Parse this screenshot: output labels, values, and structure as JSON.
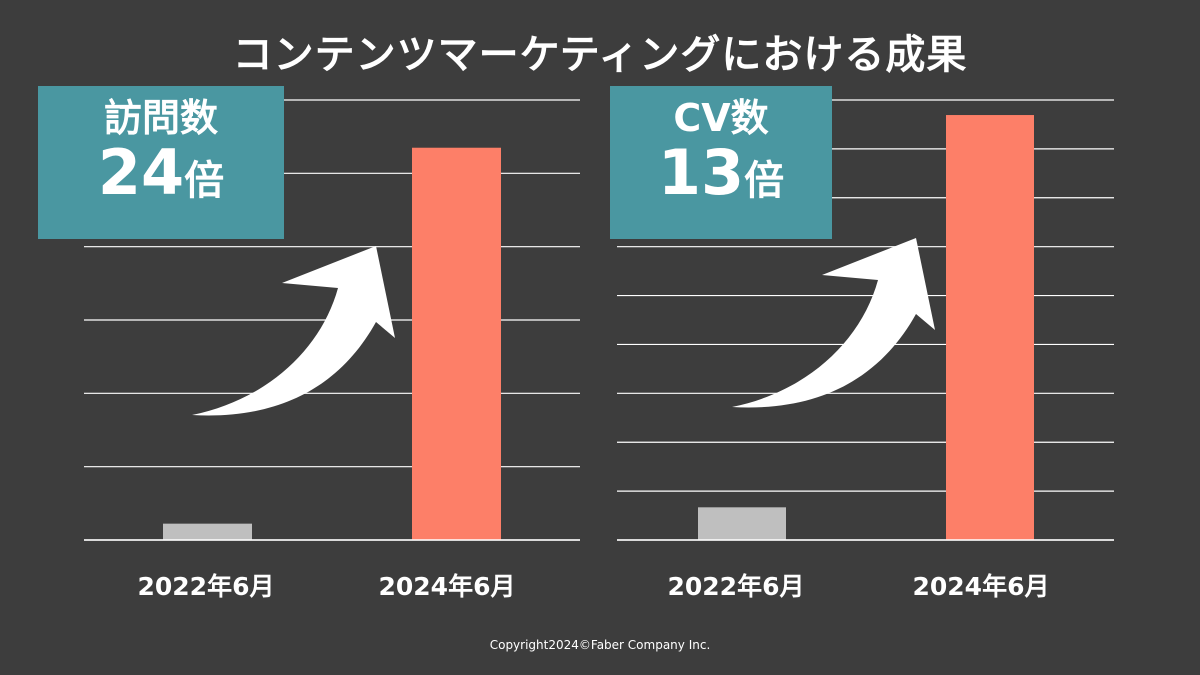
{
  "title": "コンテンツマーケティングにおける成果",
  "colors": {
    "background": "#3d3d3d",
    "bar_before": "#bfbfbf",
    "bar_after": "#fd7f68",
    "callout": "#4a97a1",
    "gridline": "#ffffff",
    "arrow": "#ffffff"
  },
  "panels": [
    {
      "metric": "訪問数",
      "multiplier_value": "24",
      "multiplier_unit": "倍"
    },
    {
      "metric": "CV数",
      "multiplier_value": "13",
      "multiplier_unit": "倍"
    }
  ],
  "chart_data": [
    {
      "type": "bar",
      "categories": [
        "2022年6月",
        "2024年6月"
      ],
      "values": [
        1,
        24
      ],
      "ylim": [
        0,
        29
      ],
      "grid": true,
      "legend": "none"
    },
    {
      "type": "bar",
      "categories": [
        "2022年6月",
        "2024年6月"
      ],
      "values": [
        2,
        26
      ],
      "ylim": [
        0,
        29
      ],
      "grid": true,
      "legend": "none"
    }
  ],
  "copyright": "Copyright2024©Faber Company Inc."
}
